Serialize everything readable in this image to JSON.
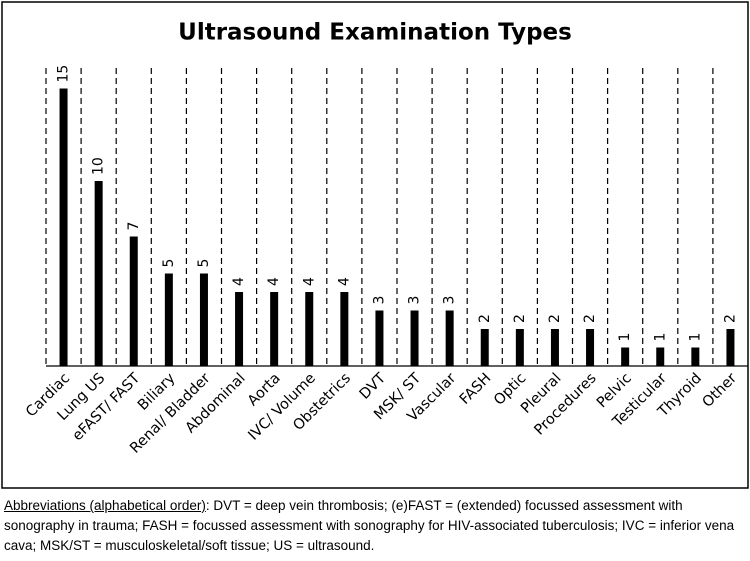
{
  "chart_data": {
    "type": "bar",
    "title": "Ultrasound Examination Types",
    "categories": [
      "Cardiac",
      "Lung US",
      "eFAST/ FAST",
      "Biliary",
      "Renal/ Bladder",
      "Abdominal",
      "Aorta",
      "IVC/ Volume",
      "Obstetrics",
      "DVT",
      "MSK/ ST",
      "Vascular",
      "FASH",
      "Optic",
      "Pleural",
      "Procedures",
      "Pelvic",
      "Testicular",
      "Thyroid",
      "Other"
    ],
    "values": [
      15,
      10,
      7,
      5,
      5,
      4,
      4,
      4,
      4,
      3,
      3,
      3,
      2,
      2,
      2,
      2,
      1,
      1,
      1,
      2
    ],
    "color": "#000000",
    "ylim": [
      0,
      16
    ],
    "grid": true,
    "note": {
      "label": "Abbreviations (alphabetical order)",
      "text": ": DVT = deep vein thrombosis; (e)FAST = (extended) focussed assessment with sonography in trauma; FASH = focussed assessment with sonography for HIV-associated tuberculosis; IVC = inferior vena cava; MSK/ST = musculoskeletal/soft tissue; US = ultrasound."
    }
  }
}
